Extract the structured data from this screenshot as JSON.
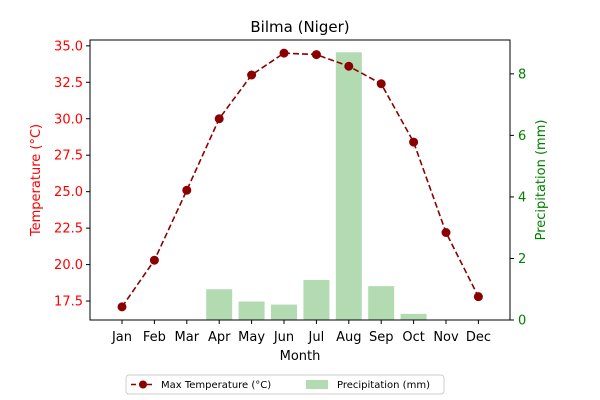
{
  "chart_data": {
    "type": "bar+line",
    "title": "Bilma (Niger)",
    "xlabel": "Month",
    "ylabel_left": "Temperature (°C)",
    "ylabel_right": "Precipitation (mm)",
    "categories": [
      "Jan",
      "Feb",
      "Mar",
      "Apr",
      "May",
      "Jun",
      "Jul",
      "Aug",
      "Sep",
      "Oct",
      "Nov",
      "Dec"
    ],
    "left_axis": {
      "ylim": [
        16.2,
        35.4
      ],
      "ticks": [
        17.5,
        20.0,
        22.5,
        25.0,
        27.5,
        30.0,
        32.5,
        35.0
      ],
      "tick_labels": [
        "17.5",
        "20.0",
        "22.5",
        "25.0",
        "27.5",
        "30.0",
        "32.5",
        "35.0"
      ],
      "color": "#ff0000"
    },
    "right_axis": {
      "ylim": [
        0,
        9.1
      ],
      "ticks": [
        0,
        2,
        4,
        6,
        8
      ],
      "tick_labels": [
        "0",
        "2",
        "4",
        "6",
        "8"
      ],
      "color": "#008000"
    },
    "series": [
      {
        "name": "Max Temperature (°C)",
        "kind": "line",
        "axis": "left",
        "color": "#8b0000",
        "line_style": "dashed",
        "marker": "circle",
        "values": [
          17.1,
          20.3,
          25.1,
          30.0,
          33.0,
          34.5,
          34.4,
          33.6,
          32.4,
          28.4,
          22.2,
          17.8
        ]
      },
      {
        "name": "Precipitation (mm)",
        "kind": "bar",
        "axis": "right",
        "color": "#b2dbb2",
        "values": [
          0,
          0,
          0,
          1.0,
          0.6,
          0.5,
          1.3,
          8.7,
          1.1,
          0.2,
          0,
          0
        ]
      }
    ],
    "legend": {
      "placement": "bottom-center",
      "entries": [
        "Max Temperature (°C)",
        "Precipitation (mm)"
      ]
    },
    "grid": false
  }
}
